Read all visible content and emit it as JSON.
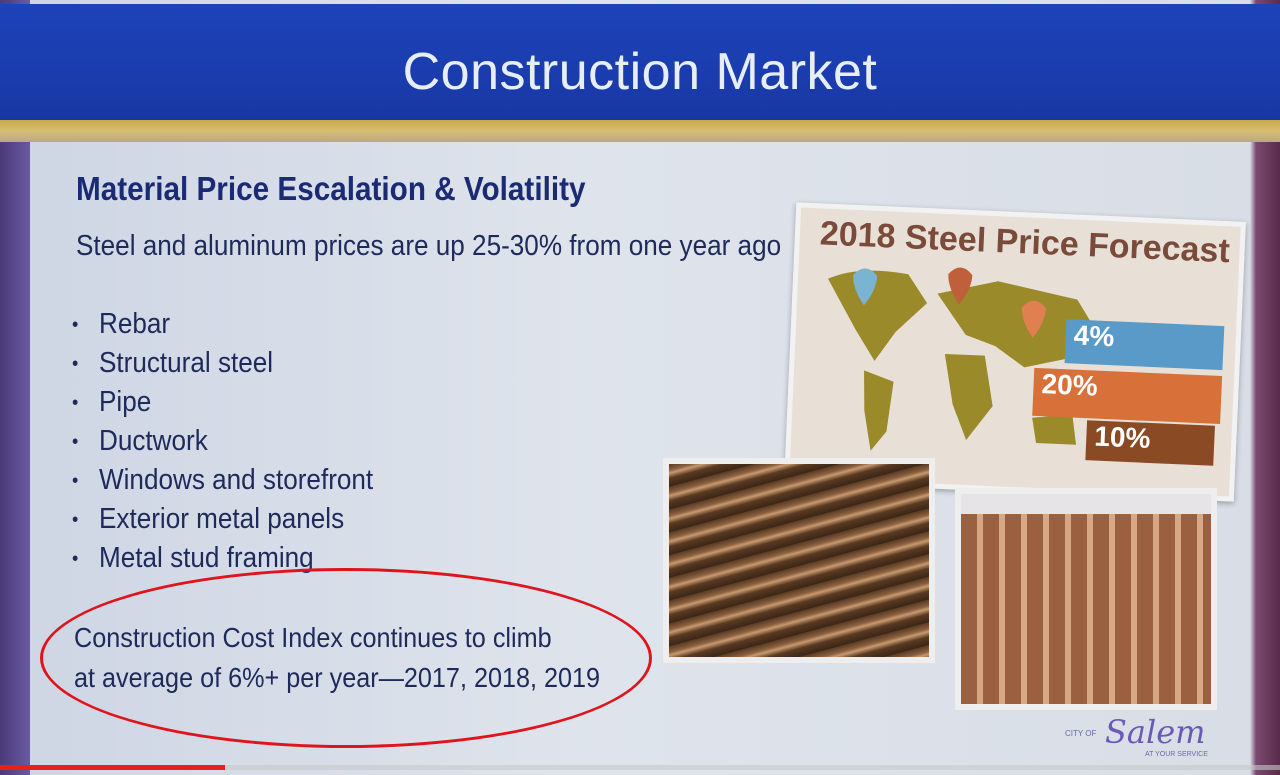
{
  "slide": {
    "title": "Construction Market",
    "subtitle": "Material Price Escalation & Volatility",
    "lead": "Steel and aluminum prices are up 25-30% from one year ago",
    "bullets": [
      "Rebar",
      "Structural steel",
      "Pipe",
      "Ductwork",
      "Windows and storefront",
      "Exterior metal panels",
      "Metal stud framing"
    ],
    "note_line1": "Construction Cost Index continues to climb",
    "note_line2": "at average of 6%+ per year—2017, 2018, 2019",
    "highlight_color": "#e0141c",
    "forecast": {
      "title": "2018 Steel Price Forecast",
      "stats": [
        "4%",
        "20%",
        "10%"
      ],
      "colors": [
        "#5a9ac8",
        "#d8703a",
        "#8a4a24"
      ]
    },
    "logo": {
      "prefix": "CITY OF",
      "name": "Salem",
      "tagline": "AT YOUR SERVICE"
    }
  },
  "player": {
    "progress": 0.176,
    "progress_color": "#e62117"
  }
}
